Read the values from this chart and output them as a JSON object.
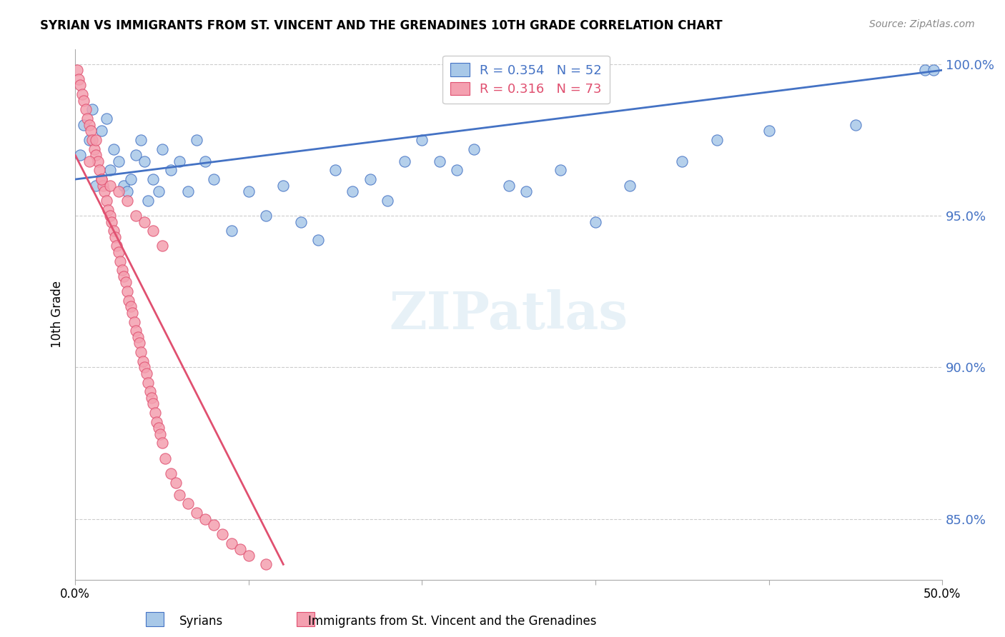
{
  "title": "SYRIAN VS IMMIGRANTS FROM ST. VINCENT AND THE GRENADINES 10TH GRADE CORRELATION CHART",
  "source": "Source: ZipAtlas.com",
  "ylabel": "10th Grade",
  "xlabel": "",
  "xlim": [
    0.0,
    0.5
  ],
  "ylim": [
    0.83,
    1.005
  ],
  "yticks": [
    0.85,
    0.9,
    0.95,
    1.0
  ],
  "ytick_labels": [
    "85.0%",
    "90.0%",
    "95.0%",
    "100.0%"
  ],
  "xticks": [
    0.0,
    0.1,
    0.2,
    0.3,
    0.4,
    0.5
  ],
  "xtick_labels": [
    "0.0%",
    "",
    "",
    "",
    "",
    "50.0%"
  ],
  "blue_R": 0.354,
  "blue_N": 52,
  "pink_R": 0.316,
  "pink_N": 73,
  "blue_color": "#a8c8e8",
  "blue_line_color": "#4472c4",
  "pink_color": "#f4a0b0",
  "pink_line_color": "#e05070",
  "watermark": "ZIPatlas",
  "legend_R_blue": "R = 0.354",
  "legend_N_blue": "N = 52",
  "legend_R_pink": "R = 0.316",
  "legend_N_pink": "N = 73",
  "blue_scatter_x": [
    0.003,
    0.005,
    0.008,
    0.01,
    0.012,
    0.015,
    0.018,
    0.02,
    0.022,
    0.025,
    0.028,
    0.03,
    0.032,
    0.035,
    0.038,
    0.04,
    0.042,
    0.045,
    0.048,
    0.05,
    0.055,
    0.06,
    0.065,
    0.07,
    0.075,
    0.08,
    0.09,
    0.1,
    0.11,
    0.12,
    0.13,
    0.14,
    0.15,
    0.16,
    0.17,
    0.18,
    0.19,
    0.2,
    0.21,
    0.22,
    0.23,
    0.25,
    0.26,
    0.28,
    0.3,
    0.32,
    0.35,
    0.37,
    0.4,
    0.45,
    0.49,
    0.495
  ],
  "blue_scatter_y": [
    0.97,
    0.98,
    0.975,
    0.985,
    0.96,
    0.978,
    0.982,
    0.965,
    0.972,
    0.968,
    0.96,
    0.958,
    0.962,
    0.97,
    0.975,
    0.968,
    0.955,
    0.962,
    0.958,
    0.972,
    0.965,
    0.968,
    0.958,
    0.975,
    0.968,
    0.962,
    0.945,
    0.958,
    0.95,
    0.96,
    0.948,
    0.942,
    0.965,
    0.958,
    0.962,
    0.955,
    0.968,
    0.975,
    0.968,
    0.965,
    0.972,
    0.96,
    0.958,
    0.965,
    0.948,
    0.96,
    0.968,
    0.975,
    0.978,
    0.98,
    0.998,
    0.998
  ],
  "pink_scatter_x": [
    0.001,
    0.002,
    0.003,
    0.004,
    0.005,
    0.006,
    0.007,
    0.008,
    0.009,
    0.01,
    0.011,
    0.012,
    0.013,
    0.014,
    0.015,
    0.016,
    0.017,
    0.018,
    0.019,
    0.02,
    0.021,
    0.022,
    0.023,
    0.024,
    0.025,
    0.026,
    0.027,
    0.028,
    0.029,
    0.03,
    0.031,
    0.032,
    0.033,
    0.034,
    0.035,
    0.036,
    0.037,
    0.038,
    0.039,
    0.04,
    0.041,
    0.042,
    0.043,
    0.044,
    0.045,
    0.046,
    0.047,
    0.048,
    0.049,
    0.05,
    0.052,
    0.055,
    0.058,
    0.06,
    0.065,
    0.07,
    0.075,
    0.08,
    0.085,
    0.09,
    0.095,
    0.1,
    0.11,
    0.012,
    0.008,
    0.015,
    0.02,
    0.025,
    0.03,
    0.035,
    0.04,
    0.045,
    0.05
  ],
  "pink_scatter_y": [
    0.998,
    0.995,
    0.993,
    0.99,
    0.988,
    0.985,
    0.982,
    0.98,
    0.978,
    0.975,
    0.972,
    0.97,
    0.968,
    0.965,
    0.962,
    0.96,
    0.958,
    0.955,
    0.952,
    0.95,
    0.948,
    0.945,
    0.943,
    0.94,
    0.938,
    0.935,
    0.932,
    0.93,
    0.928,
    0.925,
    0.922,
    0.92,
    0.918,
    0.915,
    0.912,
    0.91,
    0.908,
    0.905,
    0.902,
    0.9,
    0.898,
    0.895,
    0.892,
    0.89,
    0.888,
    0.885,
    0.882,
    0.88,
    0.878,
    0.875,
    0.87,
    0.865,
    0.862,
    0.858,
    0.855,
    0.852,
    0.85,
    0.848,
    0.845,
    0.842,
    0.84,
    0.838,
    0.835,
    0.975,
    0.968,
    0.962,
    0.96,
    0.958,
    0.955,
    0.95,
    0.948,
    0.945,
    0.94
  ]
}
